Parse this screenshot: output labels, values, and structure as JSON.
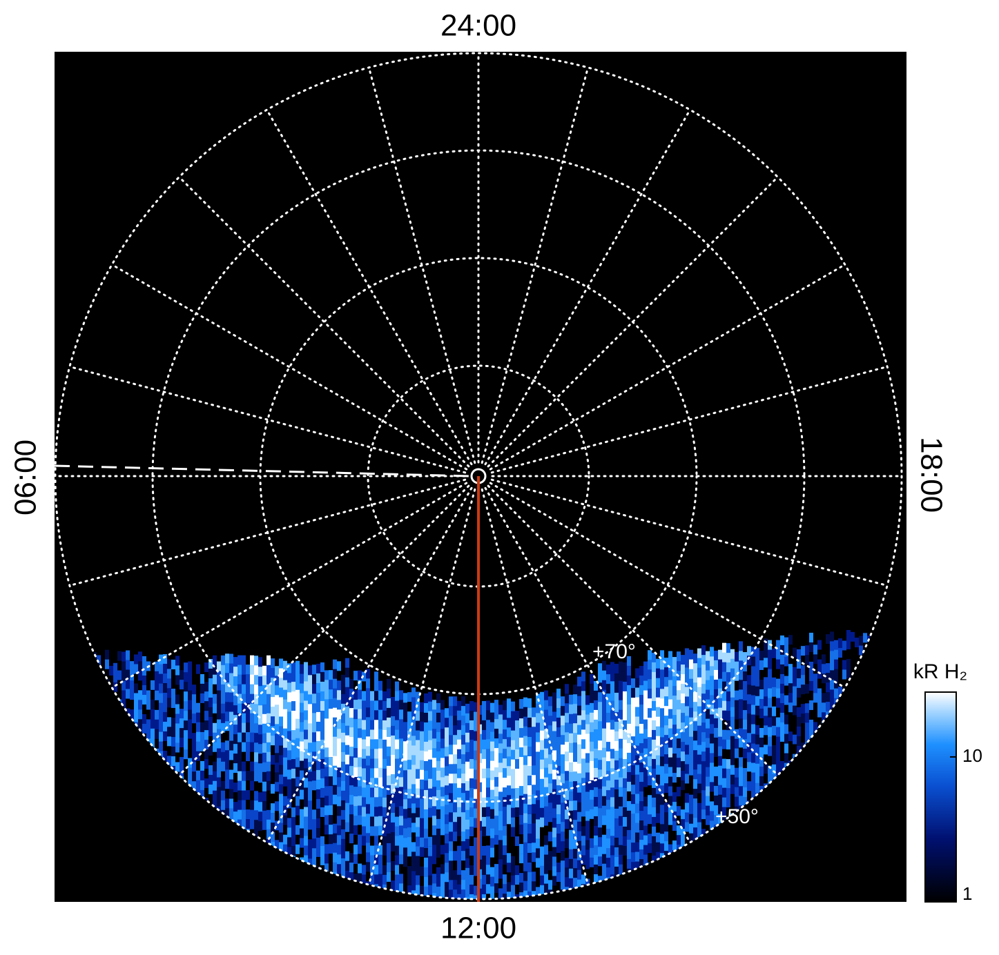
{
  "chart_data": {
    "type": "polar-image",
    "labels": {
      "top": "24:00",
      "bottom": "12:00",
      "left": "06:00",
      "right": "18:00"
    },
    "latitude_labels": [
      "+70°",
      "+50°"
    ],
    "colorbar": {
      "title": "kR H₂",
      "scale": "log",
      "lim": [
        1,
        28
      ],
      "ticks": [
        1,
        10
      ]
    }
  }
}
